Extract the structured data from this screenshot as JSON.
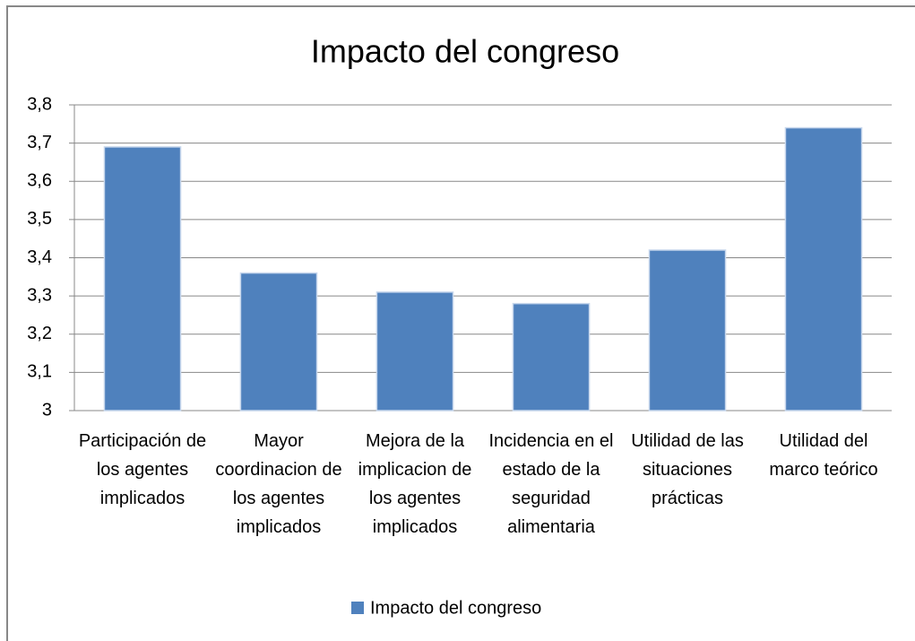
{
  "chart_data": {
    "type": "bar",
    "title": "Impacto del congreso",
    "categories": [
      "Participación de los agentes implicados",
      "Mayor coordinacion de los agentes implicados",
      "Mejora de la implicacion de los agentes implicados",
      "Incidencia en el estado de la seguridad alimentaria",
      "Utilidad de las situaciones prácticas",
      "Utilidad del marco teórico"
    ],
    "series": [
      {
        "name": "Impacto del congreso",
        "color": "#4f81bd",
        "values": [
          3.69,
          3.36,
          3.31,
          3.28,
          3.42,
          3.74
        ]
      }
    ],
    "ylim": [
      3,
      3.8
    ],
    "yticks": [
      3,
      {
        "value": 3.1,
        "label": "3,1"
      },
      {
        "value": 3.2,
        "label": "3,2"
      },
      {
        "value": 3.3,
        "label": "3,3"
      },
      {
        "value": 3.4,
        "label": "3,4"
      },
      {
        "value": 3.5,
        "label": "3,5"
      },
      {
        "value": 3.6,
        "label": "3,6"
      },
      {
        "value": 3.7,
        "label": "3,7"
      },
      {
        "value": 3.8,
        "label": "3,8"
      }
    ],
    "grid": true,
    "legend": "bottom"
  }
}
